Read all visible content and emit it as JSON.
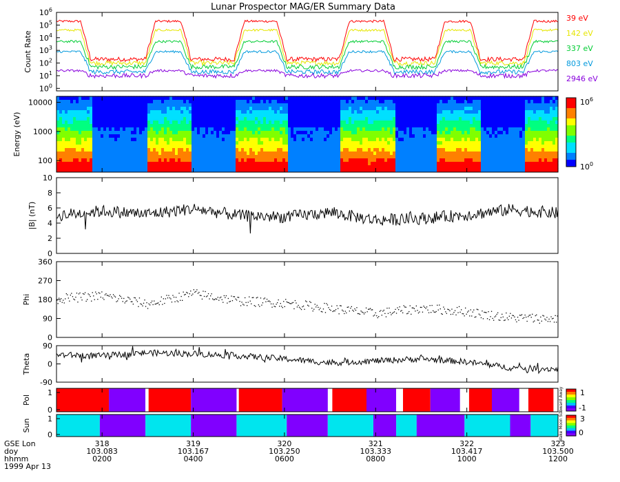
{
  "chart_data": {
    "type": "line",
    "title": "Lunar Prospector MAG/ER Summary Data",
    "x_axis": {
      "row_labels": [
        "GSE Lon",
        "doy",
        "hhmm"
      ],
      "date": "1999 Apr 13",
      "ticks": [
        {
          "gse_lon": "318",
          "doy": "103.083",
          "hhmm": "0200"
        },
        {
          "gse_lon": "319",
          "doy": "103.167",
          "hhmm": "0400"
        },
        {
          "gse_lon": "320",
          "doy": "103.250",
          "hhmm": "0600"
        },
        {
          "gse_lon": "321",
          "doy": "103.333",
          "hhmm": "0800"
        },
        {
          "gse_lon": "322",
          "doy": "103.417",
          "hhmm": "1000"
        },
        {
          "gse_lon": "323",
          "doy": "103.500",
          "hhmm": "1200"
        }
      ],
      "range_hours": [
        1.0,
        12.0
      ]
    },
    "panels": [
      {
        "id": "count_rate",
        "type": "line",
        "ylabel": "Count Rate",
        "yscale": "log",
        "ylim_exp": [
          -0.2,
          6
        ],
        "ytick_exponents": [
          0,
          1,
          2,
          3,
          4,
          5,
          6
        ],
        "tick_base": "10",
        "day_levels_exp": [
          5.3,
          4.6,
          3.7,
          2.9,
          1.4
        ],
        "night_levels_exp": [
          2.3,
          2.0,
          1.7,
          1.3,
          1.0
        ],
        "shadow_intervals_hours": [
          [
            1.75,
            2.95
          ],
          [
            3.95,
            4.9
          ],
          [
            6.05,
            7.2
          ],
          [
            8.4,
            9.3
          ],
          [
            10.3,
            11.25
          ]
        ],
        "series": [
          {
            "name": "39 eV",
            "color": "#ff0000"
          },
          {
            "name": "142 eV",
            "color": "#e6e600"
          },
          {
            "name": "337 eV",
            "color": "#00cc33"
          },
          {
            "name": "803 eV",
            "color": "#0099dd"
          },
          {
            "name": "2946 eV",
            "color": "#8800dd"
          }
        ]
      },
      {
        "id": "energy_spectrogram",
        "type": "heatmap",
        "ylabel": "Energy (eV)",
        "yscale": "log",
        "ylim": [
          40,
          16000
        ],
        "yticks": [
          "100",
          "1000",
          "10000"
        ],
        "colorbar": {
          "min_label": "10",
          "min_exp": "0",
          "max_label": "10",
          "max_exp": "6"
        }
      },
      {
        "id": "b_magnitude",
        "type": "line",
        "ylabel": "|B| (nT)",
        "ylim": [
          0,
          10
        ],
        "yticks": [
          "0",
          "2",
          "4",
          "6",
          "8",
          "10"
        ],
        "anchor_times_hours": [
          1.0,
          2.0,
          3.0,
          4.0,
          5.0,
          6.0,
          7.0,
          8.0,
          9.0,
          10.0,
          11.0,
          12.0
        ],
        "anchor_values": [
          5.0,
          5.6,
          5.2,
          5.9,
          5.0,
          4.8,
          5.4,
          4.4,
          4.6,
          5.1,
          5.8,
          5.3
        ]
      },
      {
        "id": "phi",
        "type": "scatter",
        "ylabel": "Phi",
        "ylim": [
          0,
          360
        ],
        "yticks": [
          "0",
          "90",
          "180",
          "270",
          "360"
        ],
        "anchor_times_hours": [
          1.0,
          2.0,
          3.0,
          4.0,
          5.0,
          6.0,
          7.0,
          8.0,
          9.0,
          10.0,
          10.4,
          11.0,
          12.0
        ],
        "anchor_values": [
          185,
          200,
          160,
          210,
          175,
          165,
          140,
          115,
          140,
          125,
          110,
          95,
          90
        ]
      },
      {
        "id": "theta",
        "type": "line",
        "ylabel": "Theta",
        "ylim": [
          -90,
          90
        ],
        "yticks": [
          "-90",
          "0",
          "90"
        ],
        "anchor_times_hours": [
          1.0,
          2.0,
          3.0,
          4.0,
          5.0,
          6.0,
          7.0,
          8.0,
          9.0,
          10.0,
          11.0,
          12.0
        ],
        "anchor_values": [
          45,
          40,
          55,
          50,
          40,
          25,
          5,
          15,
          25,
          10,
          -20,
          -25
        ]
      },
      {
        "id": "polarity",
        "type": "heatmap",
        "ylabel": "Pol",
        "yticks": [
          "0",
          "1"
        ],
        "colorbar": {
          "top_label": "1",
          "bottom_label": "-1",
          "side_label": "Toward Away"
        },
        "segments": [
          {
            "start": 1.0,
            "end": 1.28,
            "value": 1
          },
          {
            "start": 1.28,
            "end": 2.15,
            "value": 1
          },
          {
            "start": 2.15,
            "end": 2.95,
            "value": -1
          },
          {
            "start": 3.02,
            "end": 3.95,
            "value": 1
          },
          {
            "start": 3.95,
            "end": 4.95,
            "value": -1
          },
          {
            "start": 5.0,
            "end": 5.95,
            "value": 1
          },
          {
            "start": 5.95,
            "end": 6.95,
            "value": -1
          },
          {
            "start": 7.05,
            "end": 7.8,
            "value": 1
          },
          {
            "start": 7.8,
            "end": 8.45,
            "value": -1
          },
          {
            "start": 8.6,
            "end": 9.2,
            "value": 1
          },
          {
            "start": 9.2,
            "end": 9.85,
            "value": -1
          },
          {
            "start": 10.05,
            "end": 10.55,
            "value": 1
          },
          {
            "start": 10.55,
            "end": 11.15,
            "value": -1
          },
          {
            "start": 11.35,
            "end": 11.9,
            "value": 1
          }
        ]
      },
      {
        "id": "sun",
        "type": "heatmap",
        "ylabel": "Sun",
        "yticks": [
          "0",
          "1"
        ],
        "colorbar": {
          "top_label": "3",
          "bottom_label": "0",
          "side_label": "Wake Moon Sun"
        },
        "segments": [
          {
            "start": 1.0,
            "end": 1.95,
            "value": 2
          },
          {
            "start": 1.95,
            "end": 2.95,
            "value": 1
          },
          {
            "start": 2.95,
            "end": 3.95,
            "value": 2
          },
          {
            "start": 3.95,
            "end": 4.95,
            "value": 1
          },
          {
            "start": 4.95,
            "end": 6.05,
            "value": 2
          },
          {
            "start": 6.05,
            "end": 6.95,
            "value": 1
          },
          {
            "start": 6.95,
            "end": 7.95,
            "value": 2
          },
          {
            "start": 7.95,
            "end": 8.45,
            "value": 1
          },
          {
            "start": 8.45,
            "end": 8.9,
            "value": 2
          },
          {
            "start": 8.9,
            "end": 9.95,
            "value": 1
          },
          {
            "start": 9.95,
            "end": 10.95,
            "value": 2
          },
          {
            "start": 10.95,
            "end": 11.4,
            "value": 1
          },
          {
            "start": 11.4,
            "end": 12.0,
            "value": 2
          }
        ]
      }
    ]
  }
}
